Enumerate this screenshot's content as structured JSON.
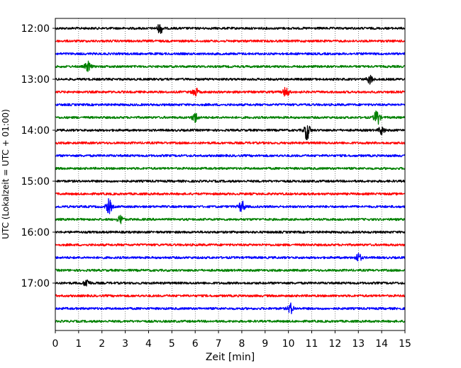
{
  "chart_data": {
    "type": "line",
    "title": "",
    "xlabel": "Zeit  [min]",
    "ylabel": "UTC (Lokalzeit = UTC + 01:00)",
    "xlim": [
      0,
      15
    ],
    "x_ticks": [
      0,
      1,
      2,
      3,
      4,
      5,
      6,
      7,
      8,
      9,
      10,
      11,
      12,
      13,
      14,
      15
    ],
    "y_ticks": [
      "12:00",
      "13:00",
      "14:00",
      "15:00",
      "16:00",
      "17:00"
    ],
    "grid": "vertical dotted",
    "trace_colors": [
      "#000000",
      "#ff0000",
      "#0000ff",
      "#008000"
    ],
    "trace_start": "12:00",
    "trace_interval_min": 15,
    "trace_count": 24,
    "events": [
      {
        "trace": 0,
        "x": 4.5,
        "amp": 0.7
      },
      {
        "trace": 3,
        "x": 1.4,
        "amp": 0.7
      },
      {
        "trace": 4,
        "x": 13.5,
        "amp": 0.6
      },
      {
        "trace": 5,
        "x": 6.0,
        "amp": 0.6
      },
      {
        "trace": 5,
        "x": 9.9,
        "amp": 0.7
      },
      {
        "trace": 7,
        "x": 6.0,
        "amp": 0.7
      },
      {
        "trace": 7,
        "x": 13.8,
        "amp": 1.1
      },
      {
        "trace": 8,
        "x": 10.8,
        "amp": 1.3
      },
      {
        "trace": 8,
        "x": 14.0,
        "amp": 0.6
      },
      {
        "trace": 14,
        "x": 2.3,
        "amp": 1.0
      },
      {
        "trace": 14,
        "x": 8.0,
        "amp": 0.8
      },
      {
        "trace": 15,
        "x": 2.8,
        "amp": 0.6
      },
      {
        "trace": 18,
        "x": 13.0,
        "amp": 0.6
      },
      {
        "trace": 20,
        "x": 1.35,
        "amp": 0.6
      },
      {
        "trace": 22,
        "x": 10.1,
        "amp": 0.7
      }
    ]
  }
}
